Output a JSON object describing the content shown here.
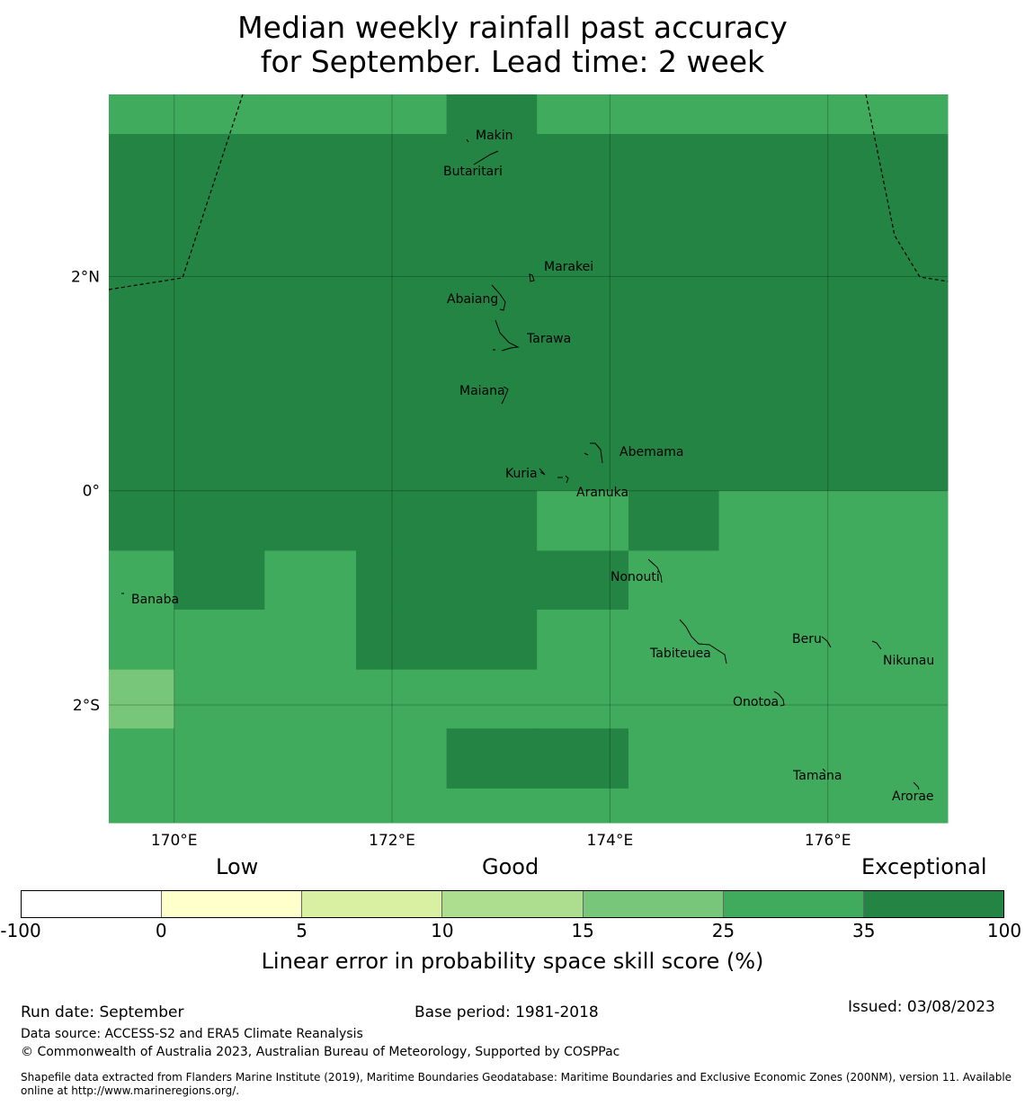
{
  "title": {
    "line1": "Median weekly rainfall past accuracy",
    "line2": "for September. Lead time: 2 week"
  },
  "map": {
    "lon_range": [
      169.4,
      177.1
    ],
    "lat_range": [
      -3.1,
      3.7
    ],
    "lon_ticks": [
      {
        "value": 170,
        "label": "170°E"
      },
      {
        "value": 172,
        "label": "172°E"
      },
      {
        "value": 174,
        "label": "174°E"
      },
      {
        "value": 176,
        "label": "176°E"
      }
    ],
    "lat_ticks": [
      {
        "value": 2,
        "label": "2°N"
      },
      {
        "value": 0,
        "label": "0°"
      },
      {
        "value": -2,
        "label": "2°S"
      }
    ],
    "islands": [
      {
        "name": "Makin",
        "lon": 173.0,
        "lat": 3.2
      },
      {
        "name": "Butaritari",
        "lon": 172.9,
        "lat": 3.0
      },
      {
        "name": "Marakei",
        "lon": 173.3,
        "lat": 2.0
      },
      {
        "name": "Abaiang",
        "lon": 172.9,
        "lat": 1.8
      },
      {
        "name": "Tarawa",
        "lon": 173.0,
        "lat": 1.4
      },
      {
        "name": "Maiana",
        "lon": 173.0,
        "lat": 0.9
      },
      {
        "name": "Abemama",
        "lon": 173.9,
        "lat": 0.4
      },
      {
        "name": "Kuria",
        "lon": 173.4,
        "lat": 0.2
      },
      {
        "name": "Aranuka",
        "lon": 173.6,
        "lat": 0.2
      },
      {
        "name": "Nonouti",
        "lon": 174.4,
        "lat": -0.6
      },
      {
        "name": "Banaba",
        "lon": 169.5,
        "lat": -0.9
      },
      {
        "name": "Tabiteuea",
        "lon": 174.8,
        "lat": -1.4
      },
      {
        "name": "Beru",
        "lon": 176.0,
        "lat": -1.3
      },
      {
        "name": "Nikunau",
        "lon": 176.45,
        "lat": -1.35
      },
      {
        "name": "Onotoa",
        "lon": 175.55,
        "lat": -1.8
      },
      {
        "name": "Tamana",
        "lon": 176.0,
        "lat": -2.5
      },
      {
        "name": "Arorae",
        "lon": 176.8,
        "lat": -2.65
      }
    ]
  },
  "chart_data": {
    "type": "heatmap",
    "units": "Linear error in probability space skill score (%)",
    "grid_columns_lon_west_edge": [
      169.4,
      170.0,
      170.83,
      171.67,
      172.5,
      173.33,
      174.17,
      175.0,
      175.83,
      176.67
    ],
    "grid_rows_lat_top_edge": [
      3.7,
      3.33,
      0.0,
      -0.56,
      -1.11,
      -1.67,
      -2.22,
      -2.78
    ],
    "class_grid": [
      [
        5,
        5,
        5,
        5,
        6,
        5,
        5,
        5,
        5,
        5
      ],
      [
        6,
        6,
        6,
        6,
        6,
        6,
        6,
        6,
        6,
        6
      ],
      [
        6,
        6,
        6,
        6,
        6,
        5,
        6,
        5,
        5,
        5
      ],
      [
        5,
        6,
        5,
        6,
        6,
        6,
        5,
        5,
        5,
        5
      ],
      [
        5,
        5,
        5,
        6,
        6,
        5,
        5,
        5,
        5,
        5
      ],
      [
        4,
        5,
        5,
        5,
        5,
        5,
        5,
        5,
        5,
        5
      ],
      [
        5,
        5,
        5,
        5,
        6,
        6,
        5,
        5,
        5,
        5
      ],
      [
        5,
        5,
        5,
        5,
        5,
        5,
        5,
        5,
        5,
        5
      ]
    ],
    "classes": [
      {
        "min": -100,
        "max": 0,
        "color": "#ffffff"
      },
      {
        "min": 0,
        "max": 5,
        "color": "#ffffcc"
      },
      {
        "min": 5,
        "max": 10,
        "color": "#d9f0a3"
      },
      {
        "min": 10,
        "max": 15,
        "color": "#addd8e"
      },
      {
        "min": 15,
        "max": 25,
        "color": "#78c679"
      },
      {
        "min": 25,
        "max": 35,
        "color": "#41ab5d"
      },
      {
        "min": 35,
        "max": 100,
        "color": "#238443"
      }
    ],
    "boundaries": [
      -100,
      0,
      5,
      10,
      15,
      25,
      35,
      100
    ],
    "tick_labels": [
      "-100",
      "0",
      "5",
      "10",
      "15",
      "25",
      "35",
      "100"
    ]
  },
  "legend": {
    "low": "Low",
    "good": "Good",
    "exceptional": "Exceptional",
    "axis_label": "Linear error in probability space skill score (%)"
  },
  "footer": {
    "run_date": "Run date: September",
    "base_period": "Base period: 1981-2018",
    "issued": "Issued: 03/08/2023",
    "data_source": "Data source: ACCESS-S2 and ERA5 Climate Reanalysis",
    "copyright": "© Commonwealth of Australia 2023, Australian Bureau of Meteorology, Supported by COSPPac",
    "shapefile_line1": "Shapefile data extracted from Flanders Marine Institute (2019), Maritime Boundaries Geodatabase: Maritime Boundaries and Exclusive Economic Zones (200NM), version 11. Available",
    "shapefile_line2": "online at http://www.marineregions.org/."
  }
}
